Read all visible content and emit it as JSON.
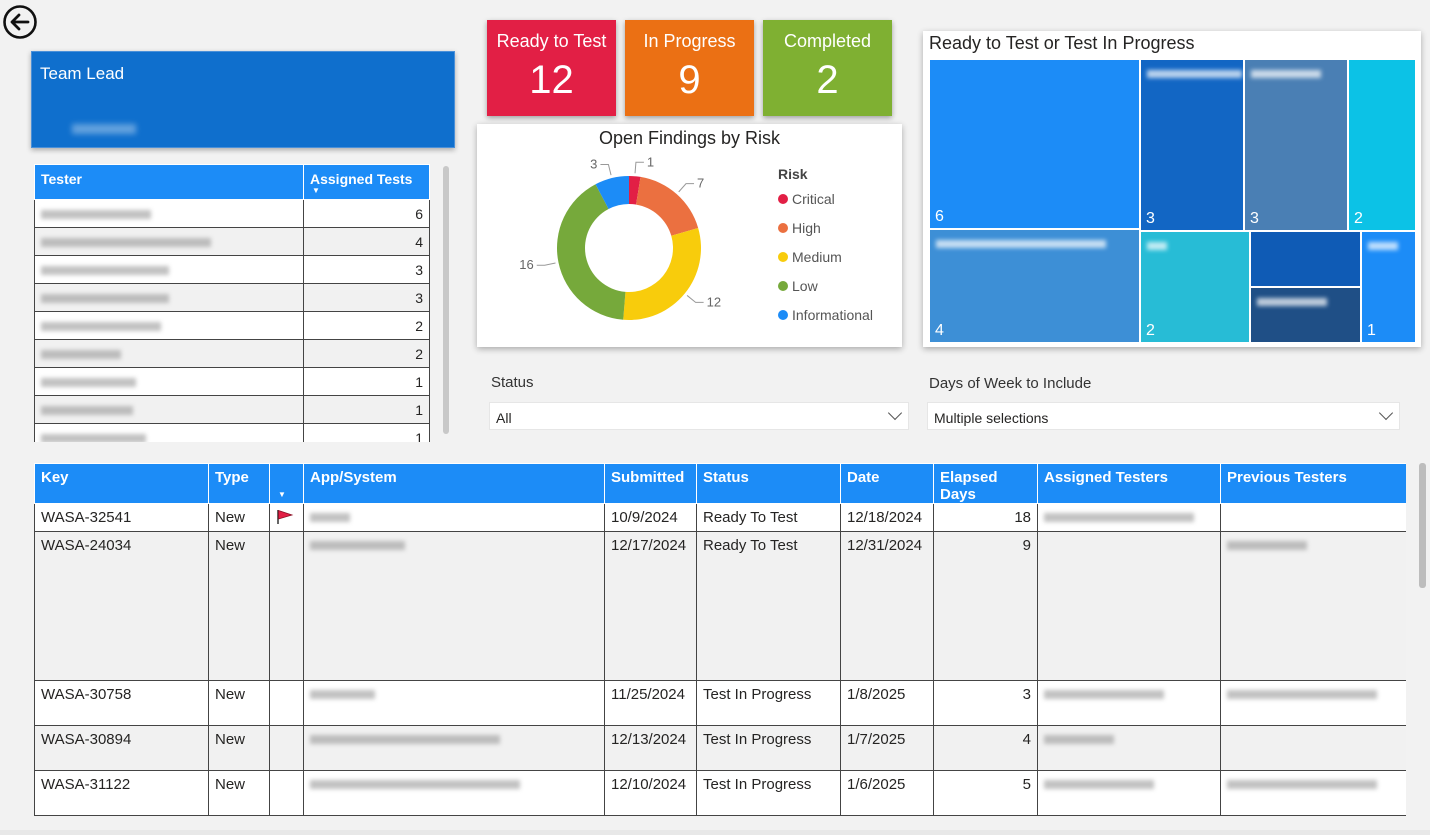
{
  "nav": {
    "back_icon": "arrow-left-circle-icon"
  },
  "team_lead": {
    "title": "Team Lead"
  },
  "cards": [
    {
      "label": "Ready to Test",
      "value": "12",
      "color": "#e21f45"
    },
    {
      "label": "In Progress",
      "value": "9",
      "color": "#eb7014"
    },
    {
      "label": "Completed",
      "value": "2",
      "color": "#7fb032"
    }
  ],
  "tester_table": {
    "headers": [
      "Tester",
      "Assigned Tests"
    ],
    "rows": [
      {
        "name": "",
        "count": "6"
      },
      {
        "name": "",
        "count": "4"
      },
      {
        "name": "",
        "count": "3"
      },
      {
        "name": "",
        "count": "3"
      },
      {
        "name": "",
        "count": "2"
      },
      {
        "name": "",
        "count": "2"
      },
      {
        "name": "",
        "count": "1"
      },
      {
        "name": "",
        "count": "1"
      },
      {
        "name": "",
        "count": "1"
      }
    ]
  },
  "donut": {
    "title": "Open Findings by Risk",
    "legend_title": "Risk"
  },
  "chart_data": {
    "type": "pie",
    "title": "Open Findings by Risk",
    "legend_title": "Risk",
    "legend_position": "right",
    "donut": true,
    "categories": [
      "Critical",
      "High",
      "Medium",
      "Low",
      "Informational"
    ],
    "values": [
      1,
      7,
      12,
      16,
      3
    ],
    "colors": [
      "#e21f45",
      "#eb7040",
      "#f8cc0c",
      "#76a93b",
      "#1c8cf7"
    ]
  },
  "treemap": {
    "title": "Ready to Test or Test In Progress",
    "tiles": [
      {
        "value": "6",
        "color": "#1c8cf7"
      },
      {
        "value": "3",
        "color": "#1266c4"
      },
      {
        "value": "3",
        "color": "#4a7fb4"
      },
      {
        "value": "2",
        "color": "#0cc2e6"
      },
      {
        "value": "4",
        "color": "#3d8fd6"
      },
      {
        "value": "2",
        "color": "#27bcd6"
      },
      {
        "value": "",
        "color": "#0f5bb5"
      },
      {
        "value": "",
        "color": "#1f4f86"
      },
      {
        "value": "1",
        "color": "#1c8cf7"
      }
    ]
  },
  "slicers": {
    "status": {
      "label": "Status",
      "value": "All"
    },
    "days": {
      "label": "Days of Week to Include",
      "value": "Multiple selections"
    }
  },
  "main_table": {
    "headers": [
      "Key",
      "Type",
      "",
      "App/System",
      "Submitted",
      "Status",
      "Date",
      "Elapsed Days",
      "Assigned Testers",
      "Previous Testers"
    ],
    "rows": [
      {
        "key": "WASA-32541",
        "type": "New",
        "flag": true,
        "submitted": "10/9/2024",
        "status": "Ready To Test",
        "date": "12/18/2024",
        "elapsed": "18"
      },
      {
        "key": "WASA-24034",
        "type": "New",
        "flag": false,
        "submitted": "12/17/2024",
        "status": "Ready To Test",
        "date": "12/31/2024",
        "elapsed": "9"
      },
      {
        "key": "WASA-30758",
        "type": "New",
        "flag": false,
        "submitted": "11/25/2024",
        "status": "Test In Progress",
        "date": "1/8/2025",
        "elapsed": "3"
      },
      {
        "key": "WASA-30894",
        "type": "New",
        "flag": false,
        "submitted": "12/13/2024",
        "status": "Test In Progress",
        "date": "1/7/2025",
        "elapsed": "4"
      },
      {
        "key": "WASA-31122",
        "type": "New",
        "flag": false,
        "submitted": "12/10/2024",
        "status": "Test In Progress",
        "date": "1/6/2025",
        "elapsed": "5"
      }
    ]
  }
}
